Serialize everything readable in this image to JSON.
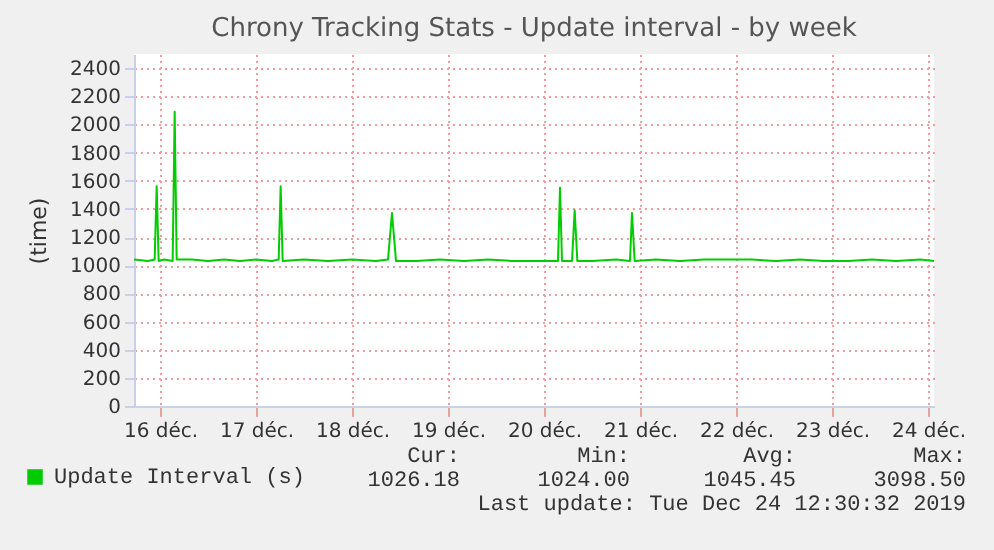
{
  "chart_data": {
    "type": "line",
    "title": "Chrony Tracking Stats - Update interval - by week",
    "ylabel": "(time)",
    "x": [
      "2019-12-16T05:30",
      "2019-12-16T09:00",
      "2019-12-16T10:40",
      "2019-12-16T11:10",
      "2019-12-16T11:40",
      "2019-12-16T13:00",
      "2019-12-16T15:10",
      "2019-12-16T15:40",
      "2019-12-16T16:10",
      "2019-12-16T20:00",
      "2019-12-17T00:00",
      "2019-12-17T04:00",
      "2019-12-17T08:00",
      "2019-12-17T12:00",
      "2019-12-17T16:00",
      "2019-12-17T17:40",
      "2019-12-17T18:10",
      "2019-12-17T18:40",
      "2019-12-18T00:00",
      "2019-12-18T06:00",
      "2019-12-18T12:00",
      "2019-12-18T18:00",
      "2019-12-18T21:00",
      "2019-12-18T22:00",
      "2019-12-18T23:00",
      "2019-12-19T04:00",
      "2019-12-19T10:00",
      "2019-12-19T16:00",
      "2019-12-19T22:00",
      "2019-12-20T04:00",
      "2019-12-20T10:00",
      "2019-12-20T15:30",
      "2019-12-20T16:00",
      "2019-12-20T16:30",
      "2019-12-20T19:00",
      "2019-12-20T19:40",
      "2019-12-20T20:20",
      "2019-12-21T00:00",
      "2019-12-21T06:00",
      "2019-12-21T09:30",
      "2019-12-21T10:00",
      "2019-12-21T10:40",
      "2019-12-21T16:00",
      "2019-12-21T22:00",
      "2019-12-22T04:00",
      "2019-12-22T10:00",
      "2019-12-22T16:00",
      "2019-12-22T22:00",
      "2019-12-23T04:00",
      "2019-12-23T10:00",
      "2019-12-23T16:00",
      "2019-12-23T22:00",
      "2019-12-24T04:00",
      "2019-12-24T10:00",
      "2019-12-24T13:30"
    ],
    "series": [
      {
        "name": "Update Interval (s)",
        "color": "#00cc00",
        "values": [
          1040,
          1030,
          1040,
          1560,
          1030,
          1040,
          1030,
          2090,
          1040,
          1040,
          1030,
          1040,
          1030,
          1040,
          1030,
          1040,
          1560,
          1030,
          1040,
          1030,
          1040,
          1030,
          1040,
          1370,
          1030,
          1030,
          1040,
          1030,
          1040,
          1030,
          1030,
          1030,
          1550,
          1030,
          1030,
          1390,
          1030,
          1030,
          1040,
          1030,
          1370,
          1030,
          1040,
          1030,
          1040,
          1040,
          1040,
          1030,
          1040,
          1030,
          1030,
          1040,
          1030,
          1040,
          1030
        ]
      }
    ],
    "xlim": [
      "2019-12-16T05:30",
      "2019-12-24T13:30"
    ],
    "xticks": [
      {
        "value": "2019-12-16T12:00",
        "label": "16 déc."
      },
      {
        "value": "2019-12-17T12:00",
        "label": "17 déc."
      },
      {
        "value": "2019-12-18T12:00",
        "label": "18 déc."
      },
      {
        "value": "2019-12-19T12:00",
        "label": "19 déc."
      },
      {
        "value": "2019-12-20T12:00",
        "label": "20 déc."
      },
      {
        "value": "2019-12-21T12:00",
        "label": "21 déc."
      },
      {
        "value": "2019-12-22T12:00",
        "label": "22 déc."
      },
      {
        "value": "2019-12-23T12:00",
        "label": "23 déc."
      },
      {
        "value": "2019-12-24T12:00",
        "label": "24 déc."
      }
    ],
    "ylim": [
      0,
      2500
    ],
    "yticks": [
      0,
      200,
      400,
      600,
      800,
      1000,
      1200,
      1400,
      1600,
      1800,
      2000,
      2200,
      2400
    ],
    "grid": true,
    "legend": "bottom left",
    "marker": "none",
    "line_style": "solid",
    "annotations": [
      "Cur:",
      "Min:",
      "Avg:",
      "Max:",
      "1026.18",
      "1024.00",
      "1045.45",
      "3098.50",
      "Last update: Tue Dec 24 12:30:32 2019"
    ]
  }
}
